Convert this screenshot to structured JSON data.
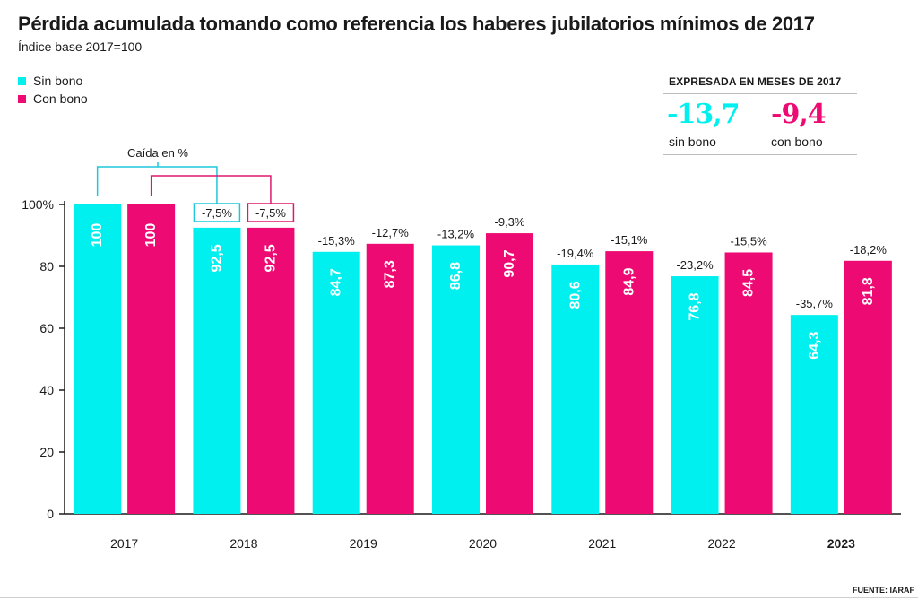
{
  "title": "Pérdida acumulada tomando como referencia los haberes jubilatorios mínimos de 2017",
  "subtitle": "Índice base 2017=100",
  "legend": {
    "sin_bono": "Sin bono",
    "con_bono": "Con bono"
  },
  "colors": {
    "sin_bono": "#00f0f0",
    "con_bono": "#ee0a73",
    "axis": "#1a1a1a",
    "bracket_sin": "#1cc9dc",
    "bracket_con": "#e0186d"
  },
  "summary": {
    "heading": "EXPRESADA EN MESES DE 2017",
    "sin_bono_value": "-13,7",
    "sin_bono_label": "sin bono",
    "con_bono_value": "-9,4",
    "con_bono_label": "con bono"
  },
  "annotation": {
    "caida_label": "Caída en %"
  },
  "source": "FUENTE: IARAF",
  "chart_data": {
    "type": "bar",
    "title": "Pérdida acumulada tomando como referencia los haberes jubilatorios mínimos de 2017",
    "subtitle": "Índice base 2017=100",
    "categories": [
      "2017",
      "2018",
      "2019",
      "2020",
      "2021",
      "2022",
      "2023"
    ],
    "bold_category": "2023",
    "ylim": [
      0,
      100
    ],
    "yticks": [
      0,
      20,
      40,
      60,
      80,
      100
    ],
    "ytick_labels": [
      "0",
      "20",
      "40",
      "60",
      "80",
      "100%"
    ],
    "series": [
      {
        "name": "Sin bono",
        "key": "sin_bono",
        "values": [
          100,
          92.5,
          84.7,
          86.8,
          80.6,
          76.8,
          64.3
        ],
        "value_labels": [
          "100",
          "92,5",
          "84,7",
          "86,8",
          "80,6",
          "76,8",
          "64,3"
        ],
        "change_labels": [
          "",
          "-7,5%",
          "-15,3%",
          "-13,2%",
          "-19,4%",
          "-23,2%",
          "-35,7%"
        ]
      },
      {
        "name": "Con bono",
        "key": "con_bono",
        "values": [
          100,
          92.5,
          87.3,
          90.7,
          84.9,
          84.5,
          81.8
        ],
        "value_labels": [
          "100",
          "92,5",
          "87,3",
          "90,7",
          "84,9",
          "84,5",
          "81,8"
        ],
        "change_labels": [
          "",
          "-7,5%",
          "-12,7%",
          "-9,3%",
          "-15,1%",
          "-15,5%",
          "-18,2%"
        ]
      }
    ],
    "legend": "top-left"
  }
}
